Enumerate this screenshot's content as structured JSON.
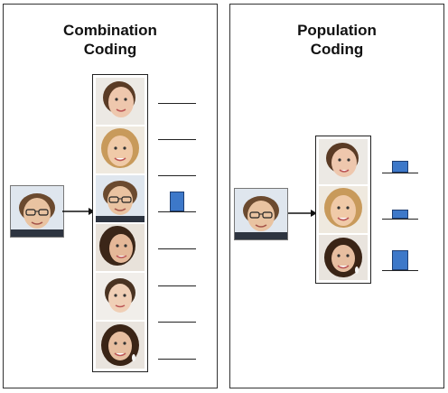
{
  "panels": {
    "combination": {
      "title_line1": "Combination",
      "title_line2": "Coding",
      "stored_faces": [
        "face-1",
        "face-2",
        "face-3",
        "face-4",
        "face-5",
        "face-6",
        "face-7"
      ],
      "responses": [
        0,
        0,
        0,
        1,
        0,
        0,
        0,
        0
      ],
      "active_index": 2
    },
    "population": {
      "title_line1": "Population",
      "title_line2": "Coding",
      "stored_faces": [
        "face-1",
        "face-2",
        "face-7"
      ],
      "responses": [
        0.55,
        0.4,
        0.85
      ]
    }
  },
  "colors": {
    "bar": "#3d78c9",
    "bar_border": "#1f3f73"
  }
}
